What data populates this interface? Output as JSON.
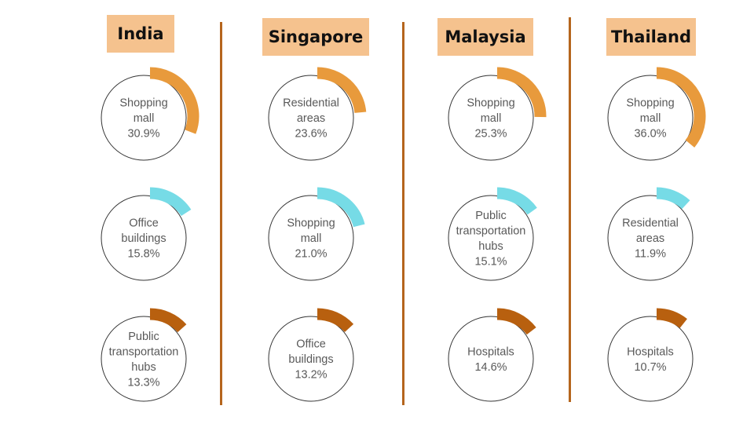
{
  "colors": {
    "header_bg": "#f5c28e",
    "divider": "#b5651d",
    "rank_1": "#e89a3c",
    "rank_2": "#76dbe6",
    "rank_3": "#b8600f",
    "circle_stroke": "#333333",
    "label_text": "#595959"
  },
  "chart_data": [
    {
      "type": "donut-progress",
      "country": "India",
      "items": [
        {
          "label": "Shopping mall",
          "value": 30.9,
          "display": "30.9%"
        },
        {
          "label": "Office buildings",
          "value": 15.8,
          "display": "15.8%"
        },
        {
          "label": "Public transportation hubs",
          "value": 13.3,
          "display": "13.3%"
        }
      ]
    },
    {
      "type": "donut-progress",
      "country": "Singapore",
      "items": [
        {
          "label": "Residential areas",
          "value": 23.6,
          "display": "23.6%"
        },
        {
          "label": "Shopping mall",
          "value": 21.0,
          "display": "21.0%"
        },
        {
          "label": "Office buildings",
          "value": 13.2,
          "display": "13.2%"
        }
      ]
    },
    {
      "type": "donut-progress",
      "country": "Malaysia",
      "items": [
        {
          "label": "Shopping mall",
          "value": 25.3,
          "display": "25.3%"
        },
        {
          "label": "Public transportation hubs",
          "value": 15.1,
          "display": "15.1%"
        },
        {
          "label": "Hospitals",
          "value": 14.6,
          "display": "14.6%"
        }
      ]
    },
    {
      "type": "donut-progress",
      "country": "Thailand",
      "items": [
        {
          "label": "Shopping mall",
          "value": 36.0,
          "display": "36.0%"
        },
        {
          "label": "Residential areas",
          "value": 11.9,
          "display": "11.9%"
        },
        {
          "label": "Hospitals",
          "value": 10.7,
          "display": "10.7%"
        }
      ]
    }
  ]
}
